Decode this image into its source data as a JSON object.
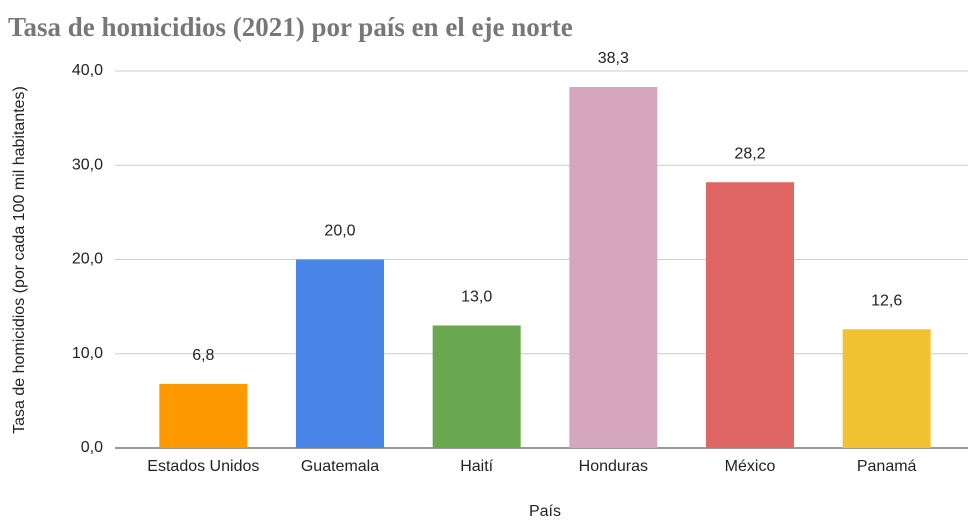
{
  "chart_data": {
    "type": "bar",
    "title": "Tasa de homicidios (2021) por país en el eje norte",
    "x_label": "País",
    "y_label": "Tasa de homicidios (por cada 100 mil habitantes)",
    "categories": [
      "Estados Unidos",
      "Guatemala",
      "Haití",
      "Honduras",
      "México",
      "Panamá"
    ],
    "values": [
      6.8,
      20.0,
      13.0,
      38.3,
      28.2,
      12.6
    ],
    "value_labels": [
      "6,8",
      "20,0",
      "13,0",
      "38,3",
      "28,2",
      "12,6"
    ],
    "colors": [
      "#ff9900",
      "#4a86e8",
      "#6aa84f",
      "#d5a6bd",
      "#e06666",
      "#f1c232"
    ],
    "ylim": [
      0,
      40
    ],
    "yticks": [
      {
        "value": 0,
        "label": "0,0"
      },
      {
        "value": 10,
        "label": "10,0"
      },
      {
        "value": 20,
        "label": "20,0"
      },
      {
        "value": 30,
        "label": "30,0"
      },
      {
        "value": 40,
        "label": "40,0"
      }
    ],
    "grid": true
  }
}
